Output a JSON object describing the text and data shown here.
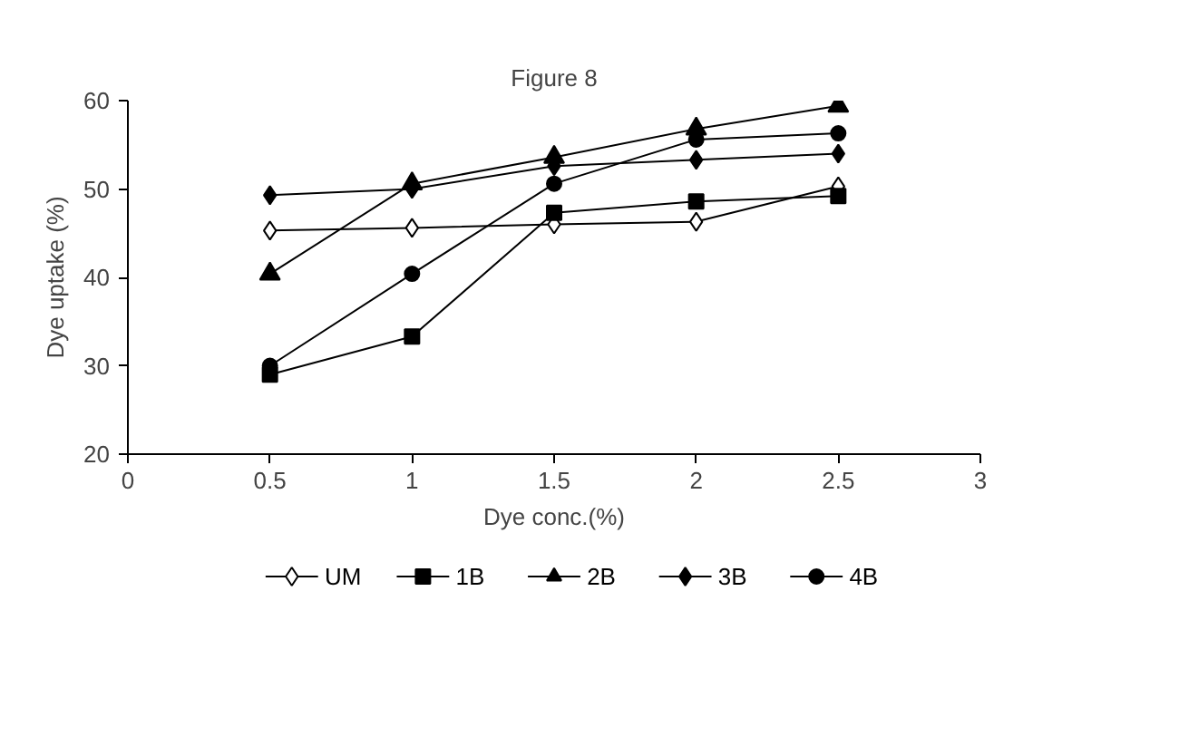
{
  "chart_data": {
    "type": "line",
    "title": "Figure 8",
    "xlabel": "Dye conc.(%)",
    "ylabel": "Dye uptake (%)",
    "x": [
      0.5,
      1,
      1.5,
      2,
      2.5
    ],
    "xlim": [
      0,
      3
    ],
    "xticks": [
      0,
      0.5,
      1,
      1.5,
      2,
      2.5,
      3
    ],
    "ylim": [
      20,
      60
    ],
    "yticks": [
      20,
      30,
      40,
      50,
      60
    ],
    "grid": false,
    "legend": "bottom",
    "series": [
      {
        "name": "UM",
        "color": "#000000",
        "marker": "diamond",
        "values": [
          45.3,
          45.6,
          46,
          46.3,
          50.3
        ]
      },
      {
        "name": "1B",
        "color": "#000000",
        "marker": "square",
        "values": [
          29,
          33.3,
          47.3,
          48.6,
          49.2
        ]
      },
      {
        "name": "2B",
        "color": "#000000",
        "marker": "triangle",
        "values": [
          40.4,
          50.6,
          53.6,
          56.8,
          59.4
        ]
      },
      {
        "name": "3B",
        "color": "#000000",
        "marker": "diamond",
        "values": [
          49.3,
          50,
          52.6,
          53.3,
          54
        ]
      },
      {
        "name": "4B",
        "color": "#000000",
        "marker": "circle",
        "values": [
          30,
          40.4,
          50.6,
          55.6,
          56.3
        ]
      }
    ]
  }
}
